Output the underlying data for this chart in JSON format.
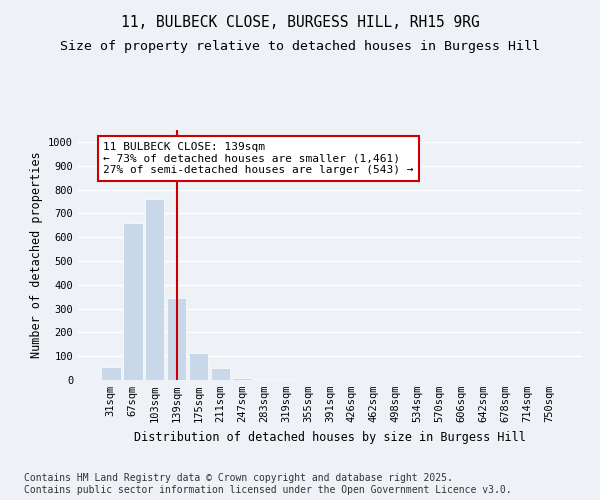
{
  "title_line1": "11, BULBECK CLOSE, BURGESS HILL, RH15 9RG",
  "title_line2": "Size of property relative to detached houses in Burgess Hill",
  "xlabel": "Distribution of detached houses by size in Burgess Hill",
  "ylabel": "Number of detached properties",
  "categories": [
    "31sqm",
    "67sqm",
    "103sqm",
    "139sqm",
    "175sqm",
    "211sqm",
    "247sqm",
    "283sqm",
    "319sqm",
    "355sqm",
    "391sqm",
    "426sqm",
    "462sqm",
    "498sqm",
    "534sqm",
    "570sqm",
    "606sqm",
    "642sqm",
    "678sqm",
    "714sqm",
    "750sqm"
  ],
  "values": [
    55,
    660,
    760,
    345,
    115,
    50,
    10,
    5,
    3,
    2,
    1,
    1,
    1,
    0,
    0,
    0,
    0,
    0,
    0,
    0,
    0
  ],
  "highlight_index": 3,
  "bar_color_normal": "#c8d8e8",
  "vline_color": "#cc0000",
  "annotation_text": "11 BULBECK CLOSE: 139sqm\n← 73% of detached houses are smaller (1,461)\n27% of semi-detached houses are larger (543) →",
  "annotation_box_color": "#cc0000",
  "ylim": [
    0,
    1050
  ],
  "yticks": [
    0,
    100,
    200,
    300,
    400,
    500,
    600,
    700,
    800,
    900,
    1000
  ],
  "footnote": "Contains HM Land Registry data © Crown copyright and database right 2025.\nContains public sector information licensed under the Open Government Licence v3.0.",
  "background_color": "#eef2f6",
  "plot_background": "#eef2f6",
  "grid_color": "#ffffff",
  "title_fontsize": 10.5,
  "subtitle_fontsize": 9.5,
  "axis_label_fontsize": 8.5,
  "tick_fontsize": 7.5,
  "annotation_fontsize": 8,
  "footnote_fontsize": 7
}
